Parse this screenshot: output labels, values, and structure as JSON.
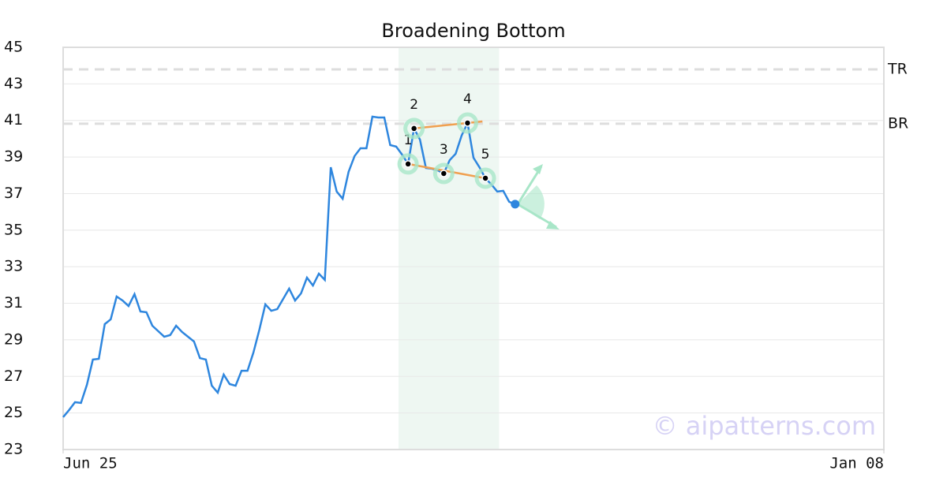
{
  "chart_data": {
    "type": "line",
    "title": "Broadening Bottom",
    "x": [
      0,
      1,
      2,
      3,
      4,
      5,
      6,
      7,
      8,
      9,
      10,
      11,
      12,
      13,
      14,
      15,
      16,
      17,
      18,
      19,
      20,
      21,
      22,
      23,
      24,
      25,
      26,
      27,
      28,
      29,
      30,
      31,
      32,
      33,
      34,
      35,
      36,
      37,
      38,
      39,
      40,
      41,
      42,
      43,
      44,
      45,
      46,
      47,
      48,
      49,
      50,
      51,
      52,
      53,
      54,
      55,
      56,
      57,
      58,
      59,
      60,
      61,
      62,
      63,
      64,
      65,
      66,
      67,
      68,
      69,
      70,
      71,
      72,
      73,
      74,
      75,
      76
    ],
    "values": [
      24.77,
      25.16,
      25.59,
      25.55,
      26.54,
      27.92,
      27.96,
      29.86,
      30.12,
      31.37,
      31.15,
      30.85,
      31.5,
      30.55,
      30.51,
      29.77,
      29.47,
      29.17,
      29.26,
      29.77,
      29.43,
      29.17,
      28.91,
      28.0,
      27.92,
      26.49,
      26.11,
      27.1,
      26.58,
      26.49,
      27.31,
      27.31,
      28.31,
      29.56,
      30.94,
      30.59,
      30.68,
      31.24,
      31.8,
      31.15,
      31.54,
      32.4,
      31.97,
      32.62,
      32.28,
      38.44,
      37.11,
      36.72,
      38.19,
      39.05,
      39.48,
      39.48,
      41.21,
      41.16,
      41.16,
      39.65,
      39.57,
      39.13,
      38.62,
      40.56,
      39.95,
      38.4,
      38.36,
      38.27,
      38.1,
      38.83,
      39.18,
      40.17,
      40.86,
      38.96,
      38.44,
      37.84,
      37.5,
      37.11,
      37.15,
      36.55,
      36.42
    ],
    "color": "#2e86de",
    "xlim": [
      0,
      138
    ],
    "xticks": [
      {
        "value": 0,
        "label": "Jun 25"
      },
      {
        "value": 138,
        "label": "Jan 08"
      }
    ],
    "ylim": [
      23,
      45
    ],
    "yticks": [
      23,
      25,
      27,
      29,
      31,
      33,
      35,
      37,
      39,
      41,
      43,
      45
    ],
    "grid": true,
    "levels": [
      {
        "label": "TR",
        "value": 43.79
      },
      {
        "label": "BR",
        "value": 40.82
      }
    ],
    "pattern": {
      "range": [
        56.4,
        73.3
      ],
      "points": [
        {
          "label": "1",
          "x": 58,
          "y": 38.62
        },
        {
          "label": "2",
          "x": 59,
          "y": 40.56
        },
        {
          "label": "3",
          "x": 64,
          "y": 38.1
        },
        {
          "label": "4",
          "x": 68,
          "y": 40.86
        },
        {
          "label": "5",
          "x": 71,
          "y": 37.84
        }
      ]
    },
    "last_point": {
      "x": 76,
      "y": 36.42
    },
    "watermark": "© aipatterns.com"
  }
}
